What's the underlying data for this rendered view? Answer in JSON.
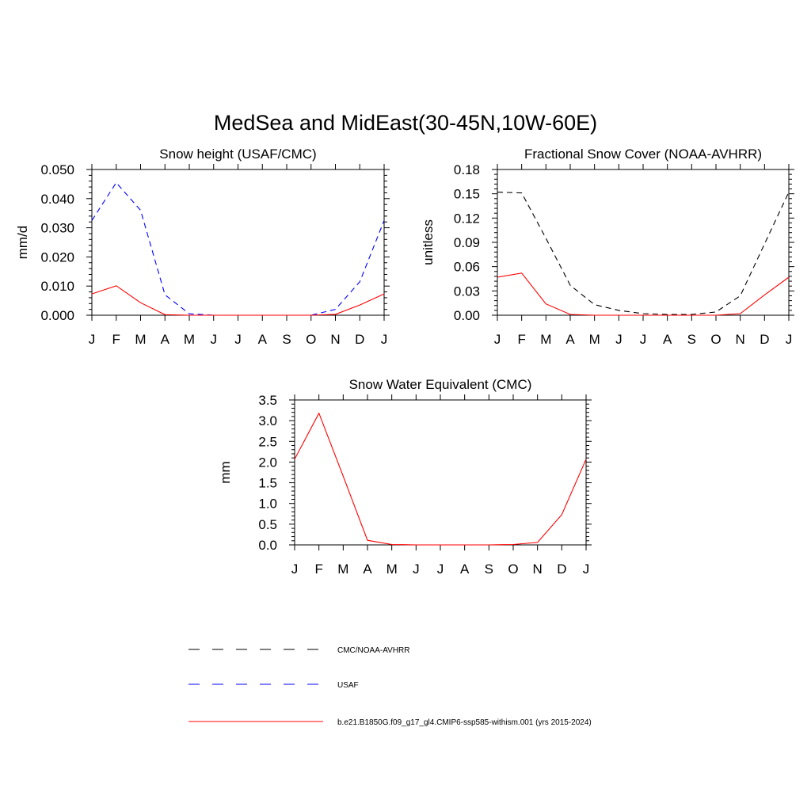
{
  "figure": {
    "title": "MedSea and MidEast(30-45N,10W-60E)"
  },
  "colors": {
    "obs": "#000000",
    "usaf": "#0000ff",
    "model": "#ff0000"
  },
  "chart_data": [
    {
      "type": "line",
      "title": "Snow height (USAF/CMC)",
      "xlabel": "",
      "ylabel": "mm/d",
      "categories": [
        "J",
        "F",
        "M",
        "A",
        "M",
        "J",
        "J",
        "A",
        "S",
        "O",
        "N",
        "D",
        "J"
      ],
      "ylim": [
        0,
        0.05
      ],
      "yticks": [
        "0.000",
        "0.010",
        "0.020",
        "0.030",
        "0.040",
        "0.050"
      ],
      "ytick_values": [
        0,
        0.01,
        0.02,
        0.03,
        0.04,
        0.05
      ],
      "series": [
        {
          "name": "USAF",
          "color": "#0000ff",
          "style": "dashed",
          "values": [
            0.0325,
            0.0455,
            0.036,
            0.007,
            0.0005,
            0.0,
            0.0,
            0.0,
            0.0,
            0.0,
            0.002,
            0.0115,
            0.0325
          ]
        },
        {
          "name": "b.e21.B1850G.f09_g17_gl4.CMIP6-ssp585-withism.001 (yrs 2015-2024)",
          "color": "#ff0000",
          "style": "solid",
          "values": [
            0.0073,
            0.0101,
            0.0043,
            0.0002,
            0.0,
            0.0,
            0.0,
            0.0,
            0.0,
            0.0,
            0.0003,
            0.0035,
            0.0073
          ]
        }
      ]
    },
    {
      "type": "line",
      "title": "Fractional Snow Cover (NOAA-AVHRR)",
      "xlabel": "",
      "ylabel": "unitless",
      "categories": [
        "J",
        "F",
        "M",
        "A",
        "M",
        "J",
        "J",
        "A",
        "S",
        "O",
        "N",
        "D",
        "J"
      ],
      "ylim": [
        0,
        0.18
      ],
      "yticks": [
        "0.00",
        "0.03",
        "0.06",
        "0.09",
        "0.12",
        "0.15",
        "0.18"
      ],
      "ytick_values": [
        0,
        0.03,
        0.06,
        0.09,
        0.12,
        0.15,
        0.18
      ],
      "series": [
        {
          "name": "CMC/NOAA-AVHRR",
          "color": "#000000",
          "style": "dashed",
          "values": [
            0.152,
            0.151,
            0.095,
            0.037,
            0.013,
            0.006,
            0.002,
            0.001,
            0.001,
            0.004,
            0.024,
            0.088,
            0.152
          ]
        },
        {
          "name": "b.e21.B1850G.f09_g17_gl4.CMIP6-ssp585-withism.001 (yrs 2015-2024)",
          "color": "#ff0000",
          "style": "solid",
          "values": [
            0.047,
            0.052,
            0.014,
            0.001,
            0.0,
            0.0,
            0.0,
            0.0,
            0.0,
            0.0,
            0.002,
            0.025,
            0.047
          ]
        }
      ]
    },
    {
      "type": "line",
      "title": "Snow Water Equivalent (CMC)",
      "xlabel": "",
      "ylabel": "mm",
      "categories": [
        "J",
        "F",
        "M",
        "A",
        "M",
        "J",
        "J",
        "A",
        "S",
        "O",
        "N",
        "D",
        "J"
      ],
      "ylim": [
        0,
        3.5
      ],
      "yticks": [
        "0.0",
        "0.5",
        "1.0",
        "1.5",
        "2.0",
        "2.5",
        "3.0",
        "3.5"
      ],
      "ytick_values": [
        0,
        0.5,
        1.0,
        1.5,
        2.0,
        2.5,
        3.0,
        3.5
      ],
      "series": [
        {
          "name": "CMC/NOAA-AVHRR",
          "color": "#000000",
          "style": "dashed",
          "values": [
            0,
            0,
            0,
            0,
            0,
            0,
            0,
            0,
            0,
            0,
            0,
            0,
            0
          ]
        },
        {
          "name": "b.e21.B1850G.f09_g17_gl4.CMIP6-ssp585-withism.001 (yrs 2015-2024)",
          "color": "#ff0000",
          "style": "solid",
          "values": [
            2.07,
            3.18,
            1.66,
            0.11,
            0.01,
            0.0,
            0.0,
            0.0,
            0.0,
            0.01,
            0.06,
            0.73,
            2.07
          ]
        }
      ]
    }
  ],
  "legend": {
    "items": [
      {
        "label": "CMC/NOAA-AVHRR",
        "color": "#000000",
        "style": "dashed"
      },
      {
        "label": "USAF",
        "color": "#0000ff",
        "style": "dashed"
      },
      {
        "label": "b.e21.B1850G.f09_g17_gl4.CMIP6-ssp585-withism.001 (yrs 2015-2024)",
        "color": "#ff0000",
        "style": "solid"
      }
    ]
  }
}
